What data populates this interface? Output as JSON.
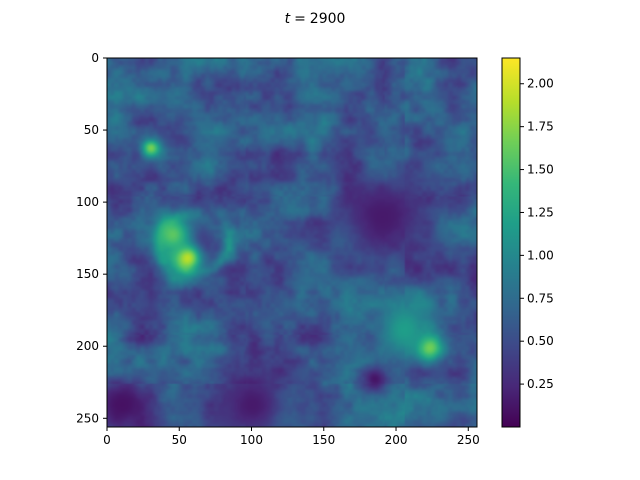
{
  "chart_data": {
    "type": "heatmap",
    "title": "t = 2900",
    "title_prefix": "t",
    "title_value": "2900",
    "xlabel": "",
    "ylabel": "",
    "xlim": [
      0,
      255
    ],
    "ylim": [
      255,
      0
    ],
    "x_ticks": [
      0,
      50,
      100,
      150,
      200,
      250
    ],
    "y_ticks": [
      0,
      50,
      100,
      150,
      200,
      250
    ],
    "colormap": "viridis",
    "colorbar": {
      "vmin": 0.0,
      "vmax": 2.15,
      "ticks": [
        "0.25",
        "0.50",
        "0.75",
        "1.00",
        "1.25",
        "1.50",
        "1.75",
        "2.00"
      ]
    },
    "grid": false,
    "features": [
      {
        "x": 60,
        "y": 128,
        "value": 0.05,
        "radius": 9
      },
      {
        "x": 55,
        "y": 138,
        "value": 2.0,
        "radius": 7
      },
      {
        "x": 45,
        "y": 122,
        "value": 1.6,
        "radius": 10
      },
      {
        "x": 30,
        "y": 62,
        "value": 1.7,
        "radius": 5
      },
      {
        "x": 222,
        "y": 200,
        "value": 1.9,
        "radius": 7
      },
      {
        "x": 185,
        "y": 222,
        "value": 0.1,
        "radius": 7
      },
      {
        "x": 205,
        "y": 188,
        "value": 1.2,
        "radius": 14
      },
      {
        "x": 190,
        "y": 110,
        "value": 0.15,
        "radius": 22
      },
      {
        "x": 100,
        "y": 240,
        "value": 0.15,
        "radius": 18
      },
      {
        "x": 10,
        "y": 240,
        "value": 0.1,
        "radius": 15
      }
    ]
  },
  "colors": {
    "viridis": [
      "#440154",
      "#482878",
      "#3e4989",
      "#31688e",
      "#26828e",
      "#1f9e89",
      "#35b779",
      "#6ece58",
      "#b5de2b",
      "#fde725"
    ]
  }
}
